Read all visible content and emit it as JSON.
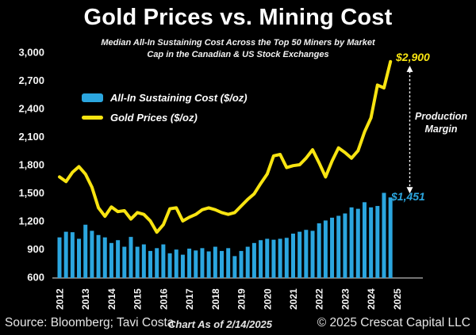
{
  "header": {
    "title": "Gold Prices vs. Mining Cost",
    "subtitle": "Median All-In Sustaining Cost Across the Top 50 Miners by Market\nCap in the Canadian & US Stock Exchanges"
  },
  "legend": {
    "items": [
      {
        "label": "All-In Sustaining Cost ($/oz)",
        "type": "bar",
        "color": "#2ba6df"
      },
      {
        "label": "Gold Prices ($/oz)",
        "type": "line",
        "color": "#f8e411"
      }
    ]
  },
  "annotations": {
    "gold_value": "$2,900",
    "aisc_value": "$1,451",
    "margin_label": "Production Margin",
    "arrow_color": "#ffffff"
  },
  "footer": {
    "source": "Source: Bloomberg; Tavi Costa",
    "as_of": "Chart As of 2/14/2025",
    "copyright": "© 2025 Crescat Capital LLC"
  },
  "chart_data": {
    "type": "bar",
    "subtype": "bar-and-line-combo",
    "frequency": "quarterly",
    "x_start": "2012Q1",
    "x_end": "2024Q4",
    "categories_years": [
      "2012",
      "2013",
      "2014",
      "2015",
      "2016",
      "2017",
      "2018",
      "2019",
      "2020",
      "2021",
      "2022",
      "2023",
      "2024",
      "2025"
    ],
    "series": [
      {
        "name": "All-In Sustaining Cost ($/oz)",
        "type": "bar",
        "color": "#2ba6df",
        "values": [
          1025,
          1085,
          1080,
          1010,
          1160,
          1095,
          1050,
          1025,
          965,
          995,
          925,
          1030,
          925,
          950,
          880,
          910,
          950,
          855,
          895,
          840,
          905,
          885,
          910,
          875,
          925,
          880,
          910,
          825,
          880,
          925,
          965,
          995,
          1010,
          1000,
          1010,
          1020,
          1065,
          1085,
          1105,
          1095,
          1175,
          1205,
          1235,
          1255,
          1280,
          1345,
          1330,
          1400,
          1345,
          1360,
          1500,
          1451
        ]
      },
      {
        "name": "Gold Prices ($/oz)",
        "type": "line",
        "color": "#f8e411",
        "values": [
          1670,
          1620,
          1720,
          1780,
          1700,
          1560,
          1340,
          1250,
          1350,
          1300,
          1310,
          1220,
          1290,
          1270,
          1200,
          1080,
          1160,
          1330,
          1340,
          1200,
          1240,
          1270,
          1320,
          1340,
          1320,
          1290,
          1270,
          1290,
          1360,
          1430,
          1490,
          1600,
          1700,
          1895,
          1910,
          1770,
          1790,
          1800,
          1870,
          1960,
          1820,
          1670,
          1840,
          1980,
          1930,
          1870,
          1950,
          2150,
          2300,
          2650,
          2620,
          2900
        ]
      }
    ],
    "ylim": [
      600,
      3000
    ],
    "y_ticks": [
      {
        "value": 600,
        "label": "600"
      },
      {
        "value": 900,
        "label": "900"
      },
      {
        "value": 1200,
        "label": "1,200"
      },
      {
        "value": 1500,
        "label": "1,500"
      },
      {
        "value": 1800,
        "label": "1,800"
      },
      {
        "value": 2100,
        "label": "2,100"
      },
      {
        "value": 2400,
        "label": "2,400"
      },
      {
        "value": 2700,
        "label": "2,700"
      },
      {
        "value": 3000,
        "label": "3,000"
      }
    ],
    "grid": false,
    "background": "#000000",
    "legend_position": "top-left",
    "latest_bar_value": 1451,
    "latest_line_value": 2900
  }
}
